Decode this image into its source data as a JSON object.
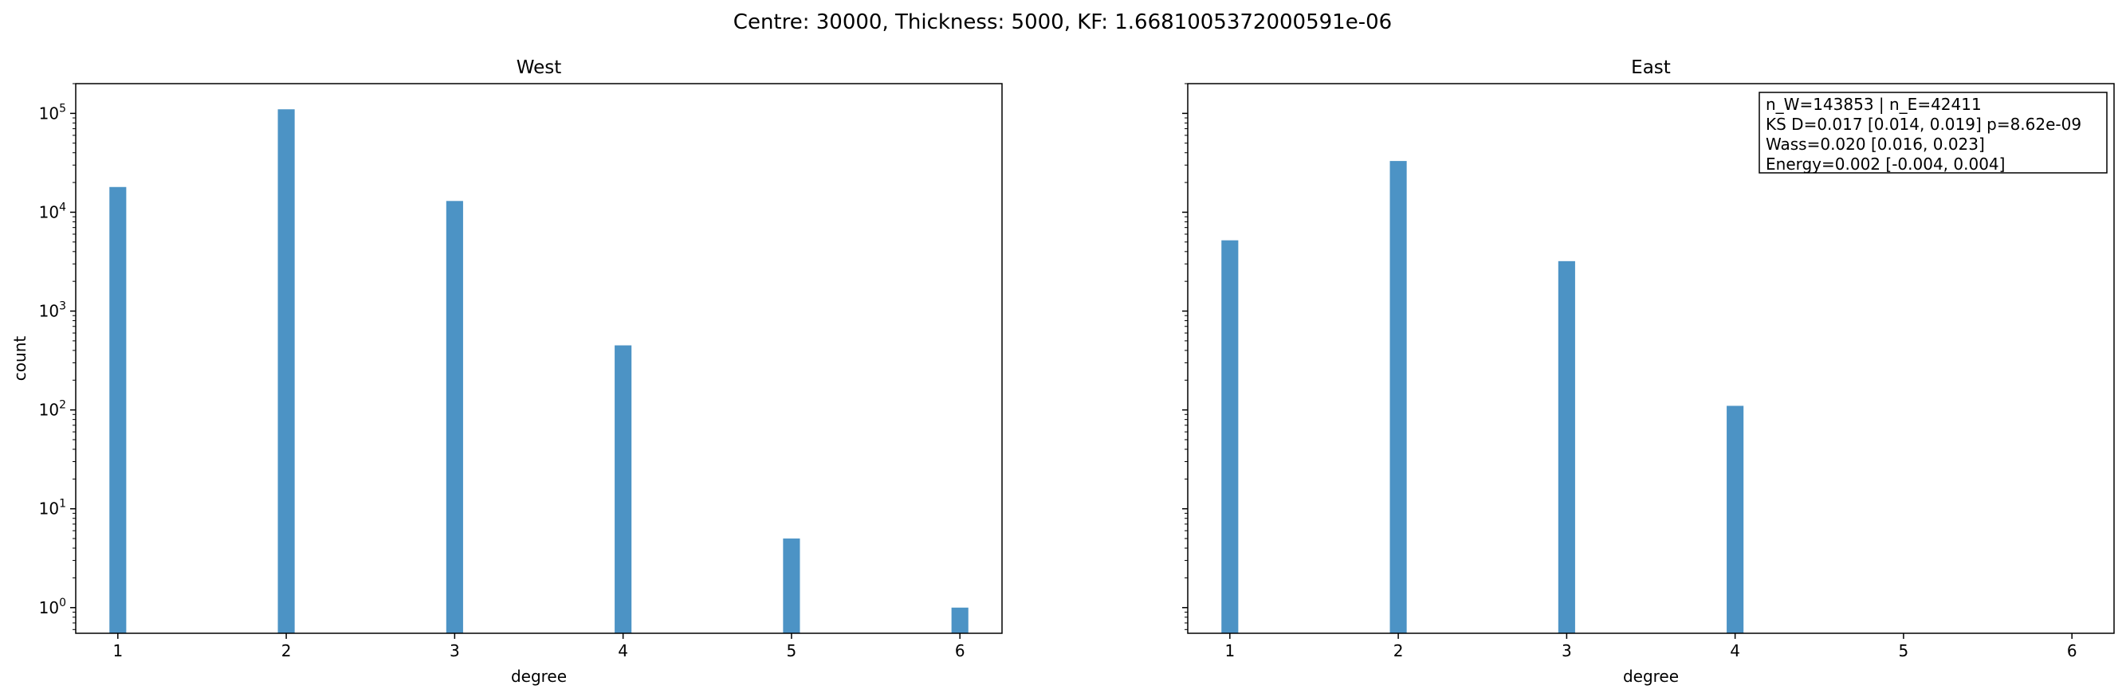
{
  "figure": {
    "suptitle": "Centre: 30000, Thickness: 5000, KF: 1.6681005372000591e-06"
  },
  "chart_data": [
    {
      "type": "bar",
      "title": "West",
      "xlabel": "degree",
      "ylabel": "count",
      "yscale": "log",
      "ylim": [
        0.55,
        200000
      ],
      "xlim": [
        0.75,
        6.25
      ],
      "x": [
        1,
        2,
        3,
        4,
        5,
        6
      ],
      "values": [
        18000,
        110000,
        13000,
        450,
        5,
        1
      ],
      "x_ticks": [
        "1",
        "2",
        "3",
        "4",
        "5",
        "6"
      ],
      "y_ticks": [
        {
          "value": 1,
          "mantissa": "10",
          "exp": "0"
        },
        {
          "value": 10,
          "mantissa": "10",
          "exp": "1"
        },
        {
          "value": 100,
          "mantissa": "10",
          "exp": "2"
        },
        {
          "value": 1000,
          "mantissa": "10",
          "exp": "3"
        },
        {
          "value": 10000,
          "mantissa": "10",
          "exp": "4"
        },
        {
          "value": 100000,
          "mantissa": "10",
          "exp": "5"
        }
      ],
      "bar_color": "#4c93c5",
      "grid": false
    },
    {
      "type": "bar",
      "title": "East",
      "xlabel": "degree",
      "ylabel": "",
      "yscale": "log",
      "ylim": [
        0.55,
        200000
      ],
      "xlim": [
        0.75,
        6.25
      ],
      "x": [
        1,
        2,
        3,
        4
      ],
      "values": [
        5200,
        33000,
        3200,
        110
      ],
      "x_ticks": [
        "1",
        "2",
        "3",
        "4",
        "5",
        "6"
      ],
      "y_ticks": [],
      "bar_color": "#4c93c5",
      "grid": false,
      "annotation": {
        "placement": "top-right",
        "lines": [
          "n_W=143853 | n_E=42411",
          "KS D=0.017 [0.014, 0.019]  p=8.62e-09",
          "Wass=0.020 [0.016, 0.023]",
          "Energy=0.002 [-0.004, 0.004]"
        ]
      }
    }
  ]
}
